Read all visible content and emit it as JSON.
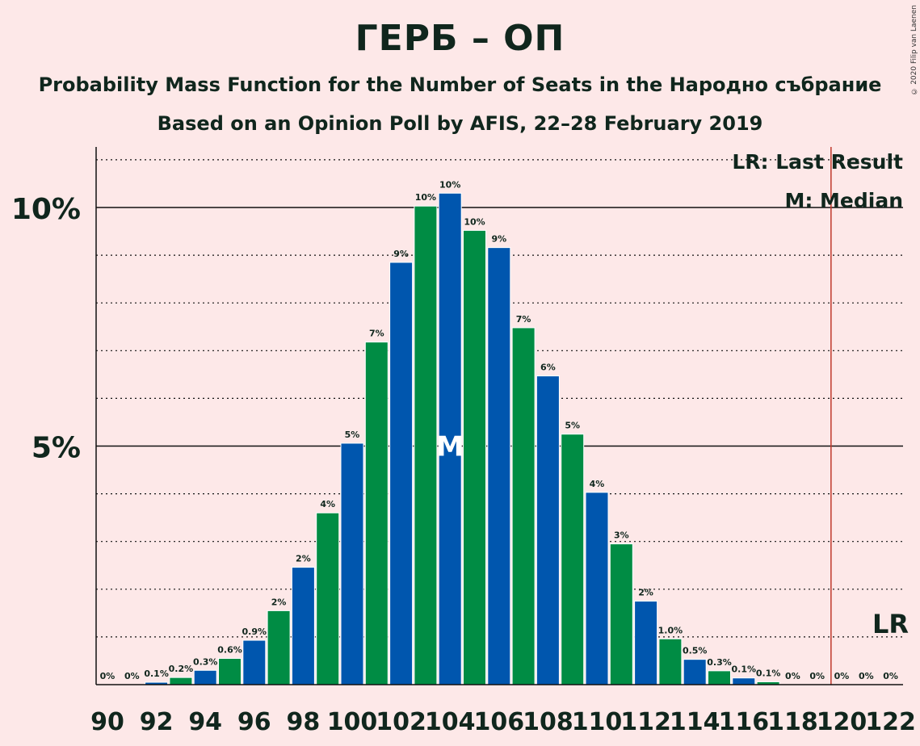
{
  "title": "ГЕРБ – ОП",
  "subtitle": "Probability Mass Function for the Number of Seats in the Народно събрание",
  "subtitle2": "Based on an Opinion Poll by AFIS, 22–28 February 2019",
  "copyright": "© 2020 Filip van Laenen",
  "legend": {
    "lr": "LR: Last Result",
    "median": "M: Median"
  },
  "colors": {
    "background": "#fde8e8",
    "green": "#008c44",
    "blue": "#0056ae",
    "last_result_line": "#c0392b",
    "text": "#10261d"
  },
  "chart_data": {
    "type": "bar",
    "x": [
      90,
      91,
      92,
      93,
      94,
      95,
      96,
      97,
      98,
      99,
      100,
      101,
      102,
      103,
      104,
      105,
      106,
      107,
      108,
      109,
      110,
      111,
      112,
      113,
      114,
      115,
      116,
      117,
      118,
      119,
      120,
      121,
      122
    ],
    "values": [
      0,
      0,
      0.05,
      0.15,
      0.3,
      0.55,
      0.93,
      1.55,
      2.46,
      3.6,
      5.06,
      7.18,
      8.85,
      10.03,
      10.3,
      9.52,
      9.16,
      7.48,
      6.47,
      5.25,
      4.03,
      2.95,
      1.75,
      0.96,
      0.53,
      0.29,
      0.14,
      0.06,
      0,
      0,
      0,
      0,
      0
    ],
    "labels": [
      "0%",
      "0%",
      "0.1%",
      "0.2%",
      "0.3%",
      "0.6%",
      "0.9%",
      "2%",
      "2%",
      "4%",
      "5%",
      "7%",
      "9%",
      "10%",
      "10%",
      "10%",
      "9%",
      "7%",
      "6%",
      "5%",
      "4%",
      "3%",
      "2%",
      "1.0%",
      "0.5%",
      "0.3%",
      "0.1%",
      "0.1%",
      "0%",
      "0%",
      "0%",
      "0%",
      "0%"
    ],
    "xticks": [
      "90",
      "92",
      "94",
      "96",
      "98",
      "100",
      "102",
      "104",
      "106",
      "108",
      "110",
      "112",
      "114",
      "116",
      "118",
      "120",
      "122"
    ],
    "yticks": [
      {
        "value": 5,
        "label": "5%"
      },
      {
        "value": 10,
        "label": "10%"
      }
    ],
    "ylim": [
      0,
      11.3
    ],
    "median": 104,
    "median_label": "M",
    "last_result": 120,
    "last_result_label": "LR",
    "grid": "dotted every 1%, solid at 5% and 10%"
  }
}
